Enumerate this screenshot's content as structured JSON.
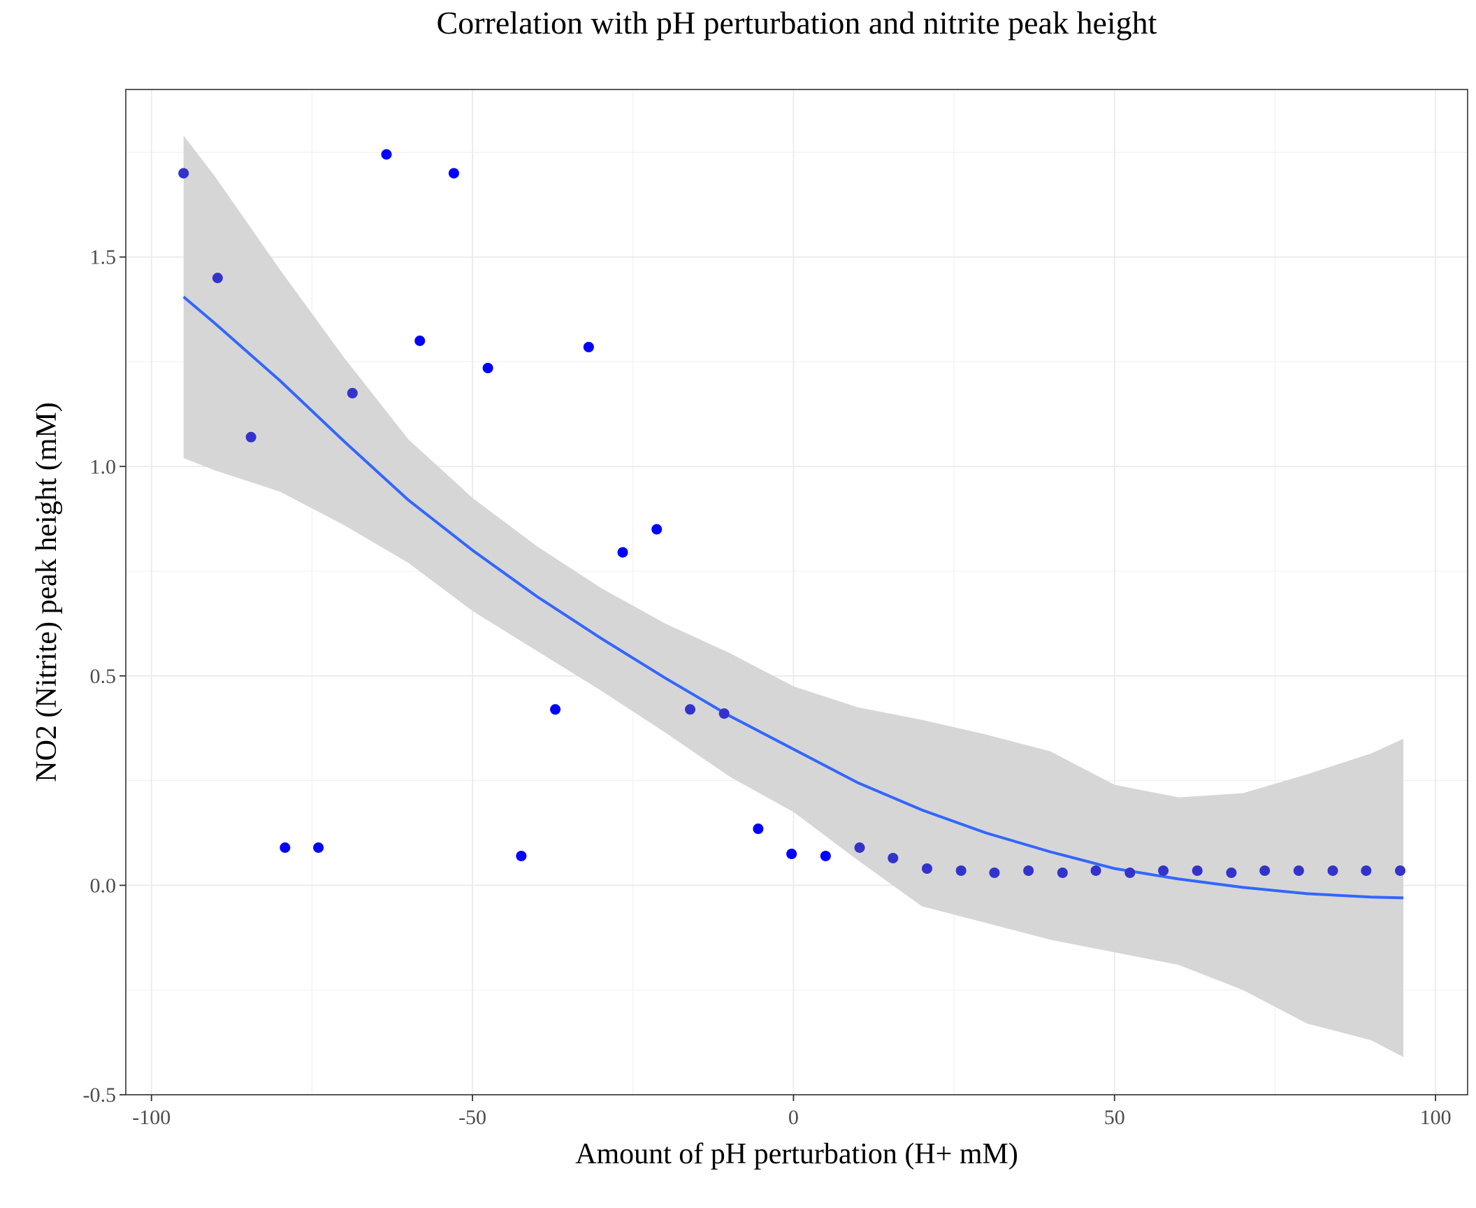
{
  "chart_data": {
    "type": "scatter",
    "title": "Correlation with pH perturbation and nitrite peak height",
    "xlabel": "Amount of pH perturbation (H+ mM)",
    "ylabel": "NO2 (Nitrite) peak height (mM)",
    "xlim": [
      -104,
      105
    ],
    "ylim": [
      -0.5,
      1.9
    ],
    "x_ticks": [
      -100,
      -50,
      0,
      50,
      100
    ],
    "x_tick_labels": [
      "-100",
      "-50",
      "0",
      "50",
      "100"
    ],
    "y_ticks": [
      -0.5,
      0.0,
      0.5,
      1.0,
      1.5
    ],
    "y_tick_labels": [
      "-0.5",
      "0.0",
      "0.5",
      "1.0",
      "1.5"
    ],
    "grid": true,
    "point_color": "#0000ff",
    "point_color_muted": "#3333cc",
    "line_color": "#3366ff",
    "band_color": "#d6d6d6",
    "series": [
      {
        "values": [
          {
            "x": -95,
            "y": 1.7
          },
          {
            "x": -89.7,
            "y": 1.45
          },
          {
            "x": -84.5,
            "y": 1.07
          },
          {
            "x": -79.2,
            "y": 0.09
          },
          {
            "x": -74,
            "y": 0.09
          },
          {
            "x": -68.7,
            "y": 1.175
          },
          {
            "x": -63.4,
            "y": 1.745
          },
          {
            "x": -58.2,
            "y": 1.3
          },
          {
            "x": -52.9,
            "y": 1.7
          },
          {
            "x": -47.6,
            "y": 1.235
          },
          {
            "x": -42.4,
            "y": 0.07
          },
          {
            "x": -37.1,
            "y": 0.42
          },
          {
            "x": -31.9,
            "y": 1.285
          },
          {
            "x": -26.6,
            "y": 0.795
          },
          {
            "x": -21.3,
            "y": 0.85
          },
          {
            "x": -16.1,
            "y": 0.42
          },
          {
            "x": -10.8,
            "y": 0.41
          },
          {
            "x": -5.5,
            "y": 0.135
          },
          {
            "x": -0.3,
            "y": 0.075
          },
          {
            "x": 5,
            "y": 0.07
          },
          {
            "x": 10.3,
            "y": 0.09
          },
          {
            "x": 15.5,
            "y": 0.065
          },
          {
            "x": 20.8,
            "y": 0.04
          },
          {
            "x": 26.1,
            "y": 0.035
          },
          {
            "x": 31.3,
            "y": 0.03
          },
          {
            "x": 36.6,
            "y": 0.035
          },
          {
            "x": 41.9,
            "y": 0.03
          },
          {
            "x": 47.1,
            "y": 0.035
          },
          {
            "x": 52.4,
            "y": 0.03
          },
          {
            "x": 57.6,
            "y": 0.035
          },
          {
            "x": 62.9,
            "y": 0.035
          },
          {
            "x": 68.2,
            "y": 0.03
          },
          {
            "x": 73.4,
            "y": 0.035
          },
          {
            "x": 78.7,
            "y": 0.035
          },
          {
            "x": 84,
            "y": 0.035
          },
          {
            "x": 89.2,
            "y": 0.035
          },
          {
            "x": 94.5,
            "y": 0.035
          }
        ]
      }
    ],
    "fit": {
      "type": "smooth",
      "x": [
        -95,
        -90,
        -80,
        -70,
        -60,
        -50,
        -40,
        -30,
        -20,
        -10,
        0,
        10,
        20,
        30,
        40,
        50,
        60,
        70,
        80,
        90,
        95
      ],
      "y": [
        1.405,
        1.34,
        1.205,
        1.06,
        0.92,
        0.8,
        0.69,
        0.59,
        0.495,
        0.405,
        0.325,
        0.245,
        0.18,
        0.125,
        0.08,
        0.04,
        0.015,
        -0.005,
        -0.02,
        -0.028,
        -0.03
      ],
      "lower": [
        1.02,
        0.99,
        0.94,
        0.86,
        0.77,
        0.655,
        0.56,
        0.465,
        0.365,
        0.26,
        0.175,
        0.06,
        -0.05,
        -0.09,
        -0.13,
        -0.16,
        -0.19,
        -0.25,
        -0.33,
        -0.37,
        -0.41
      ],
      "upper": [
        1.79,
        1.69,
        1.47,
        1.26,
        1.065,
        0.925,
        0.81,
        0.71,
        0.625,
        0.555,
        0.475,
        0.425,
        0.395,
        0.36,
        0.32,
        0.24,
        0.21,
        0.22,
        0.265,
        0.315,
        0.35
      ]
    }
  }
}
